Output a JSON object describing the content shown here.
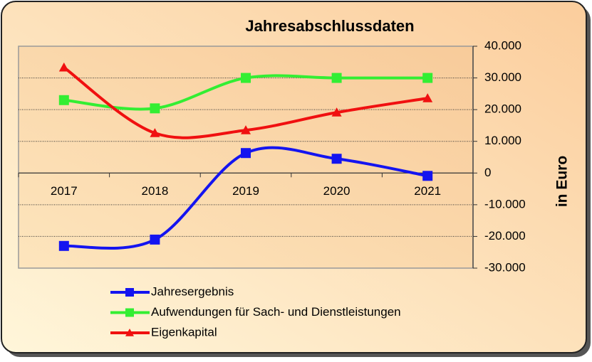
{
  "chart_data": {
    "type": "line",
    "title": "Jahresabschlussdaten",
    "y_label": "in Euro",
    "categories": [
      "2017",
      "2018",
      "2019",
      "2020",
      "2021"
    ],
    "series": [
      {
        "name": "Jahresergebnis",
        "color": "#1414f0",
        "marker": "square",
        "values": [
          -23000,
          -21000,
          6300,
          4500,
          -900
        ]
      },
      {
        "name": "Aufwendungen für Sach- und Dienstleistungen",
        "color": "#33ee33",
        "marker": "square",
        "values": [
          23000,
          20400,
          30000,
          30000,
          30000
        ]
      },
      {
        "name": "Eigenkapital",
        "color": "#f01010",
        "marker": "triangle",
        "values": [
          33300,
          12600,
          13500,
          19100,
          23600
        ]
      }
    ],
    "ylim": [
      -30000,
      40000
    ],
    "yticks": [
      {
        "value": -30000,
        "label": "-30.000"
      },
      {
        "value": -20000,
        "label": "-20.000"
      },
      {
        "value": -10000,
        "label": "-10.000"
      },
      0,
      {
        "value": 10000,
        "label": "10.000"
      },
      {
        "value": 20000,
        "label": "20.000"
      },
      {
        "value": 30000,
        "label": "30.000"
      },
      {
        "value": 40000,
        "label": "40.000"
      }
    ],
    "grid": true,
    "smooth": true,
    "y_axis_side": "right",
    "legend_position": "bottom"
  }
}
